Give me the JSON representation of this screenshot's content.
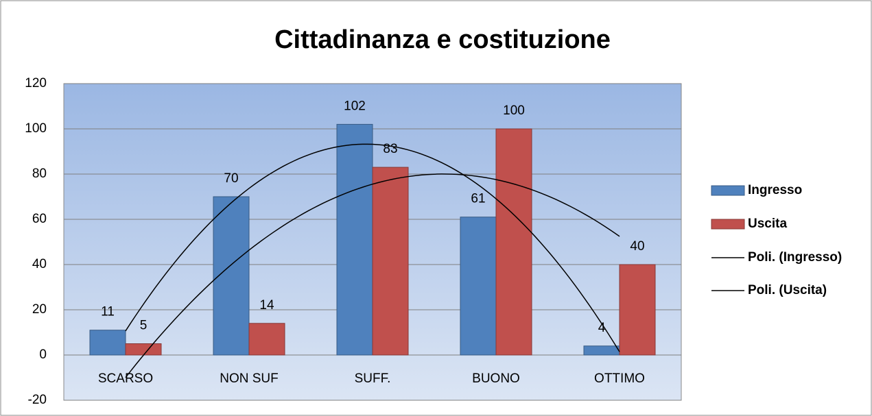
{
  "chart_data": {
    "type": "bar",
    "title": "Cittadinanza e costituzione",
    "categories": [
      "SCARSO",
      "NON SUF",
      "SUFF.",
      "BUONO",
      "OTTIMO"
    ],
    "series": [
      {
        "name": "Ingresso",
        "color": "#4f81bd",
        "values": [
          11,
          70,
          102,
          61,
          4
        ],
        "trendline": {
          "name": "Poli. (Ingresso)",
          "type": "polynomial",
          "order": 2,
          "color": "#000000"
        }
      },
      {
        "name": "Uscita",
        "color": "#c0504d",
        "values": [
          5,
          14,
          83,
          100,
          40
        ],
        "trendline": {
          "name": "Poli. (Uscita)",
          "type": "polynomial",
          "order": 2,
          "color": "#000000"
        }
      }
    ],
    "ylim": [
      -20,
      120
    ],
    "yticks": [
      -20,
      0,
      20,
      40,
      60,
      80,
      100,
      120
    ],
    "grid": true,
    "legend": "right"
  }
}
